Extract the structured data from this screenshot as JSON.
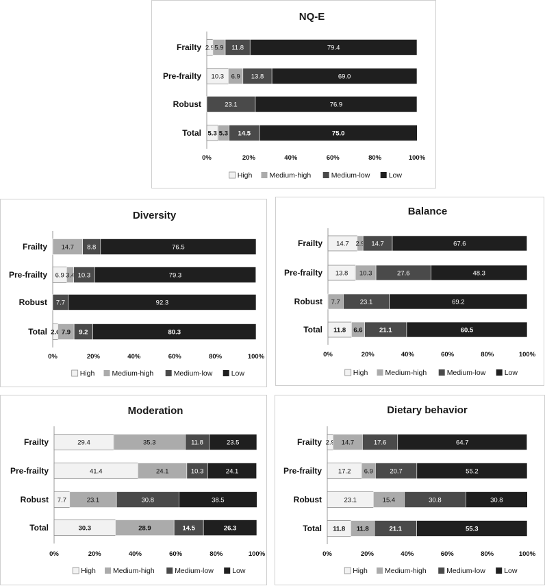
{
  "legend": [
    "High",
    "Medium-high",
    "Medium-low",
    "Low"
  ],
  "colors": [
    "#f2f2f2",
    "#ababab",
    "#4a4a4a",
    "#1f1f1f"
  ],
  "chart_data": [
    {
      "type": "bar",
      "stacked": "percent",
      "orientation": "horizontal",
      "title": "NQ-E",
      "categories": [
        "Frailty",
        "Pre-frailty",
        "Robust",
        "Total"
      ],
      "xticks": [
        "0%",
        "20%",
        "40%",
        "60%",
        "80%",
        "100%"
      ],
      "xlim": [
        0,
        100
      ],
      "series": [
        {
          "name": "High",
          "values": [
            2.9,
            10.3,
            0,
            5.3
          ]
        },
        {
          "name": "Medium-high",
          "values": [
            5.9,
            6.9,
            0,
            5.3
          ]
        },
        {
          "name": "Medium-low",
          "values": [
            11.8,
            13.8,
            23.1,
            14.5
          ]
        },
        {
          "name": "Low",
          "values": [
            79.4,
            69.0,
            76.9,
            75.0
          ]
        }
      ],
      "labels": [
        [
          "2.9",
          "10.3",
          "",
          "5.3"
        ],
        [
          "5.9",
          "6.9",
          "",
          "5.3"
        ],
        [
          "11.8",
          "13.8",
          "23.1",
          "14.5"
        ],
        [
          "79.4",
          "69.0",
          "76.9",
          "75.0"
        ]
      ],
      "legend_position": "bottom"
    },
    {
      "type": "bar",
      "stacked": "percent",
      "orientation": "horizontal",
      "title": "Diversity",
      "categories": [
        "Frailty",
        "Pre-frailty",
        "Robust",
        "Total"
      ],
      "xticks": [
        "0%",
        "20%",
        "40%",
        "60%",
        "80%",
        "100%"
      ],
      "xlim": [
        0,
        100
      ],
      "series": [
        {
          "name": "High",
          "values": [
            0,
            6.9,
            0,
            2.6
          ]
        },
        {
          "name": "Medium-high",
          "values": [
            14.7,
            3.4,
            0,
            7.9
          ]
        },
        {
          "name": "Medium-low",
          "values": [
            8.8,
            10.3,
            7.7,
            9.2
          ]
        },
        {
          "name": "Low",
          "values": [
            76.5,
            79.3,
            92.3,
            80.3
          ]
        }
      ],
      "labels": [
        [
          "",
          "6.9",
          "",
          "2.6"
        ],
        [
          "14.7",
          "3.4",
          "",
          "7.9"
        ],
        [
          "8.8",
          "10.3",
          "7.7",
          "9.2"
        ],
        [
          "76.5",
          "79.3",
          "92.3",
          "80.3"
        ]
      ],
      "legend_position": "bottom"
    },
    {
      "type": "bar",
      "stacked": "percent",
      "orientation": "horizontal",
      "title": "Balance",
      "categories": [
        "Frailty",
        "Pre-frailty",
        "Robust",
        "Total"
      ],
      "xticks": [
        "0%",
        "20%",
        "40%",
        "60%",
        "80%",
        "100%"
      ],
      "xlim": [
        0,
        100
      ],
      "series": [
        {
          "name": "High",
          "values": [
            14.7,
            13.8,
            0,
            11.8
          ]
        },
        {
          "name": "Medium-high",
          "values": [
            2.9,
            10.3,
            7.7,
            6.6
          ]
        },
        {
          "name": "Medium-low",
          "values": [
            14.7,
            27.6,
            23.1,
            21.1
          ]
        },
        {
          "name": "Low",
          "values": [
            67.6,
            48.3,
            69.2,
            60.5
          ]
        }
      ],
      "labels": [
        [
          "14.7",
          "13.8",
          "",
          "11.8"
        ],
        [
          "2.9",
          "10.3",
          "7.7",
          "6.6"
        ],
        [
          "14.7",
          "27.6",
          "23.1",
          "21.1"
        ],
        [
          "67.6",
          "48.3",
          "69.2",
          "60.5"
        ]
      ],
      "legend_position": "bottom"
    },
    {
      "type": "bar",
      "stacked": "percent",
      "orientation": "horizontal",
      "title": "Moderation",
      "categories": [
        "Frailty",
        "Pre-frailty",
        "Robust",
        "Total"
      ],
      "xticks": [
        "0%",
        "20%",
        "40%",
        "60%",
        "80%",
        "100%"
      ],
      "xlim": [
        0,
        100
      ],
      "series": [
        {
          "name": "High",
          "values": [
            29.4,
            41.4,
            7.7,
            30.3
          ]
        },
        {
          "name": "Medium-high",
          "values": [
            35.3,
            24.1,
            23.1,
            28.9
          ]
        },
        {
          "name": "Medium-low",
          "values": [
            11.8,
            10.3,
            30.8,
            14.5
          ]
        },
        {
          "name": "Low",
          "values": [
            23.5,
            24.1,
            38.5,
            26.3
          ]
        }
      ],
      "labels": [
        [
          "29.4",
          "41.4",
          "7.7",
          "30.3"
        ],
        [
          "35.3",
          "24.1",
          "23.1",
          "28.9"
        ],
        [
          "11.8",
          "10.3",
          "30.8",
          "14.5"
        ],
        [
          "23.5",
          "24.1",
          "38.5",
          "26.3"
        ]
      ],
      "legend_position": "bottom"
    },
    {
      "type": "bar",
      "stacked": "percent",
      "orientation": "horizontal",
      "title": "Dietary behavior",
      "categories": [
        "Frailty",
        "Pre-frailty",
        "Robust",
        "Total"
      ],
      "xticks": [
        "0%",
        "20%",
        "40%",
        "60%",
        "80%",
        "100%"
      ],
      "xlim": [
        0,
        100
      ],
      "series": [
        {
          "name": "High",
          "values": [
            2.9,
            17.2,
            23.1,
            11.8
          ]
        },
        {
          "name": "Medium-high",
          "values": [
            14.7,
            6.9,
            15.4,
            11.8
          ]
        },
        {
          "name": "Medium-low",
          "values": [
            17.6,
            20.7,
            30.8,
            21.1
          ]
        },
        {
          "name": "Low",
          "values": [
            64.7,
            55.2,
            30.8,
            55.3
          ]
        }
      ],
      "labels": [
        [
          "2.9",
          "17.2",
          "23.1",
          "11.8"
        ],
        [
          "14.7",
          "6.9",
          "15.4",
          "11.8"
        ],
        [
          "17.6",
          "20.7",
          "30.8",
          "21.1"
        ],
        [
          "64.7",
          "55.2",
          "30.8",
          "55.3"
        ]
      ],
      "legend_position": "bottom"
    }
  ]
}
